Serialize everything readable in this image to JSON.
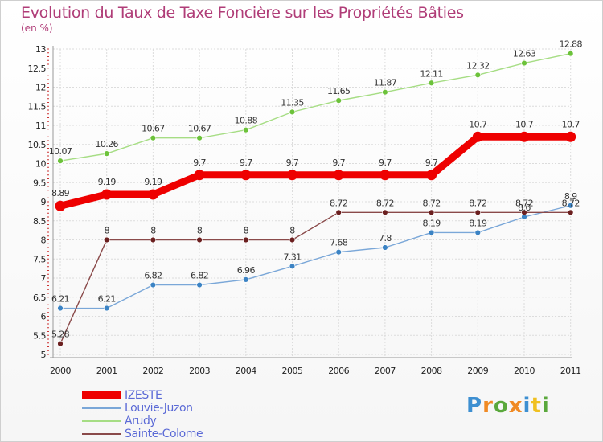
{
  "chart_data": {
    "type": "line",
    "title": "Evolution du Taux de Taxe Foncière sur les Propriétés Bâties",
    "ylabel": "(en %)",
    "xlabel": "",
    "ylim": [
      5,
      13
    ],
    "yticks": [
      "5",
      "5.5",
      "6",
      "6.5",
      "7",
      "7.5",
      "8",
      "8.5",
      "9",
      "9.5",
      "10",
      "10.5",
      "11",
      "11.5",
      "12",
      "12.5",
      "13"
    ],
    "categories": [
      "2000",
      "2001",
      "2002",
      "2003",
      "2004",
      "2005",
      "2006",
      "2007",
      "2008",
      "2009",
      "2010",
      "2011"
    ],
    "series": [
      {
        "name": "IZESTE",
        "color": "#ee0000",
        "dot": "#ee0000",
        "values": [
          8.89,
          9.19,
          9.19,
          9.7,
          9.7,
          9.7,
          9.7,
          9.7,
          9.7,
          10.7,
          10.7,
          10.7
        ],
        "labels": [
          "8.89",
          "9.19",
          "9.19",
          "9.7",
          "9.7",
          "9.7",
          "9.7",
          "9.7",
          "9.7",
          "10.7",
          "10.7",
          "10.7"
        ]
      },
      {
        "name": "Louvie-Juzon",
        "color": "#7aa7d8",
        "dot": "#3b83c4",
        "values": [
          6.21,
          6.21,
          6.82,
          6.82,
          6.96,
          7.31,
          7.68,
          7.8,
          8.19,
          8.19,
          8.6,
          8.9
        ],
        "labels": [
          "6.21",
          "6.21",
          "6.82",
          "6.82",
          "6.96",
          "7.31",
          "7.68",
          "7.8",
          "8.19",
          "8.19",
          "8.6",
          "8.9"
        ]
      },
      {
        "name": "Arudy",
        "color": "#a6dd84",
        "dot": "#6cc23a",
        "values": [
          10.07,
          10.26,
          10.67,
          10.67,
          10.88,
          11.35,
          11.65,
          11.87,
          12.11,
          12.32,
          12.63,
          12.88
        ],
        "labels": [
          "10.07",
          "10.26",
          "10.67",
          "10.67",
          "10.88",
          "11.35",
          "11.65",
          "11.87",
          "12.11",
          "12.32",
          "12.63",
          "12.88"
        ]
      },
      {
        "name": "Sainte-Colome",
        "color": "#8a4a4a",
        "dot": "#6b1f1f",
        "values": [
          5.28,
          8,
          8,
          8,
          8,
          8,
          8.72,
          8.72,
          8.72,
          8.72,
          8.72,
          8.72
        ],
        "labels": [
          "5.28",
          "8",
          "8",
          "8",
          "8",
          "8",
          "8.72",
          "8.72",
          "8.72",
          "8.72",
          "8.72",
          "8.72"
        ]
      }
    ]
  },
  "logo": {
    "letters": [
      "P",
      "r",
      "o",
      "x",
      "i",
      "t",
      "i"
    ],
    "colors": [
      "#3d8fd1",
      "#f08a24",
      "#5aa83c",
      "#f08a24",
      "#3d8fd1",
      "#f0c020",
      "#5aa83c"
    ]
  }
}
